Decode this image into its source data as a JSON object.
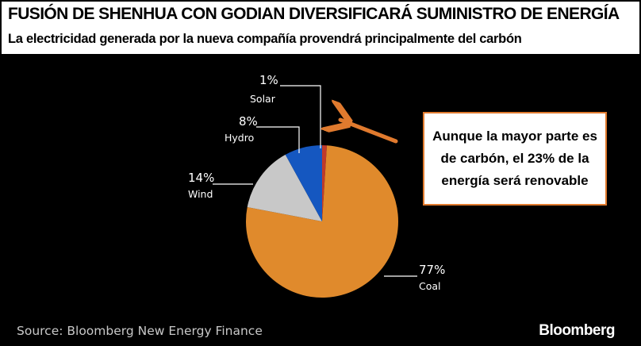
{
  "header": {
    "title": "FUSIÓN DE SHENHUA CON GODIAN DIVERSIFICARÁ SUMINISTRO DE ENERGÍA",
    "subtitle": "La electricidad generada por la nueva compañía provendrá principalmente del carbón"
  },
  "callout": {
    "text": "Aunque la mayor parte es de carbón, el 23% de la energía será renovable"
  },
  "footer": {
    "source": "Source: Bloomberg New Energy Finance",
    "brand": "Bloomberg"
  },
  "colors": {
    "accent": "#e07a2e"
  },
  "chart_data": {
    "type": "pie",
    "title": "",
    "slices": [
      {
        "name": "Solar",
        "value": 1,
        "label": "1%",
        "color": "#c0392b"
      },
      {
        "name": "Coal",
        "value": 77,
        "label": "77%",
        "color": "#e08a2c"
      },
      {
        "name": "Wind",
        "value": 14,
        "label": "14%",
        "color": "#c8c8c8"
      },
      {
        "name": "Hydro",
        "value": 8,
        "label": "8%",
        "color": "#1557c0"
      }
    ],
    "start": "12 o'clock",
    "direction": "clockwise"
  }
}
